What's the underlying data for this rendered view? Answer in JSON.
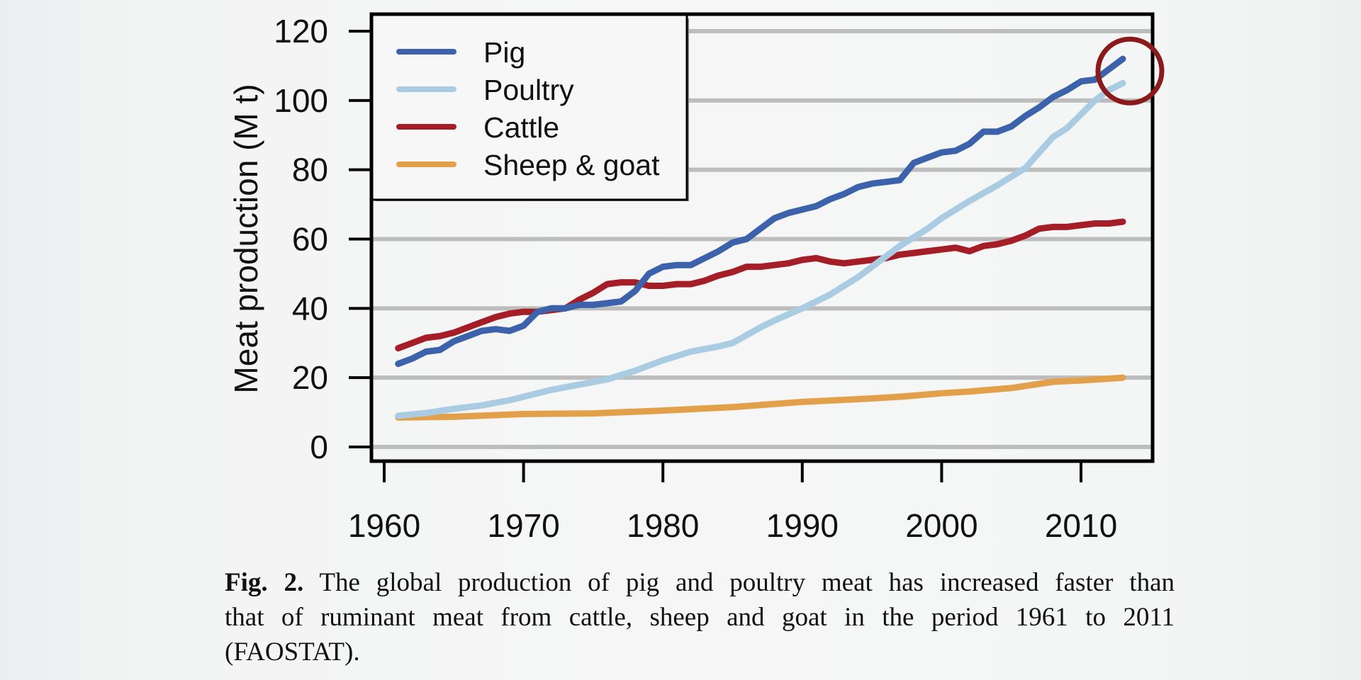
{
  "chart_data": {
    "type": "line",
    "title": "",
    "xlabel": "",
    "ylabel": "Meat production (M t)",
    "xlim": [
      1959,
      2015
    ],
    "ylim": [
      0,
      120
    ],
    "xticks": [
      1960,
      1970,
      1980,
      1990,
      2000,
      2010
    ],
    "yticks": [
      0,
      20,
      40,
      60,
      80,
      100,
      120
    ],
    "grid": "horizontal",
    "legend_position": "top-left",
    "series": [
      {
        "name": "Pig",
        "color": "#3b62aa",
        "x": [
          1961,
          1962,
          1963,
          1964,
          1965,
          1966,
          1967,
          1968,
          1969,
          1970,
          1971,
          1972,
          1973,
          1974,
          1975,
          1976,
          1977,
          1978,
          1979,
          1980,
          1981,
          1982,
          1983,
          1984,
          1985,
          1986,
          1987,
          1988,
          1989,
          1990,
          1991,
          1992,
          1993,
          1994,
          1995,
          1996,
          1997,
          1998,
          1999,
          2000,
          2001,
          2002,
          2003,
          2004,
          2005,
          2006,
          2007,
          2008,
          2009,
          2010,
          2011,
          2012,
          2013
        ],
        "values": [
          24,
          25.5,
          27.5,
          28,
          30.5,
          32,
          33.5,
          34,
          33.5,
          35,
          39,
          40,
          40,
          41,
          41,
          41.5,
          42,
          45,
          50,
          52,
          52.5,
          52.5,
          54.5,
          56.5,
          59,
          60,
          63,
          66,
          67.5,
          68.5,
          69.5,
          71.5,
          73,
          75,
          76,
          76.5,
          77,
          82,
          83.5,
          85,
          85.5,
          87.5,
          91,
          91,
          92.5,
          95.5,
          98,
          101,
          103,
          105.5,
          106,
          109,
          112
        ]
      },
      {
        "name": "Poultry",
        "color": "#a9cce3",
        "x": [
          1961,
          1963,
          1965,
          1967,
          1969,
          1970,
          1972,
          1974,
          1976,
          1978,
          1980,
          1982,
          1984,
          1985,
          1987,
          1988,
          1990,
          1992,
          1994,
          1995,
          1997,
          1999,
          2000,
          2002,
          2004,
          2005,
          2006,
          2007,
          2008,
          2009,
          2010,
          2011,
          2012,
          2013
        ],
        "values": [
          9,
          9.8,
          11,
          12,
          13.5,
          14.5,
          16.5,
          18,
          19.5,
          22,
          25,
          27.5,
          29,
          30,
          34.5,
          36.5,
          40,
          44,
          49,
          52,
          58,
          63,
          66,
          71,
          75.5,
          78,
          80.5,
          85,
          89.5,
          92,
          96,
          100,
          103,
          105
        ]
      },
      {
        "name": "Cattle",
        "color": "#a51e27",
        "x": [
          1961,
          1962,
          1963,
          1964,
          1965,
          1966,
          1967,
          1968,
          1969,
          1970,
          1971,
          1972,
          1973,
          1974,
          1975,
          1976,
          1977,
          1978,
          1979,
          1980,
          1981,
          1982,
          1983,
          1984,
          1985,
          1986,
          1987,
          1988,
          1989,
          1990,
          1991,
          1992,
          1993,
          1994,
          1995,
          1996,
          1997,
          1998,
          1999,
          2000,
          2001,
          2002,
          2003,
          2004,
          2005,
          2006,
          2007,
          2008,
          2009,
          2010,
          2011,
          2012,
          2013
        ],
        "values": [
          28.5,
          30,
          31.5,
          32,
          33,
          34.5,
          36,
          37.5,
          38.5,
          39,
          39,
          39.5,
          40,
          42.5,
          44.5,
          47,
          47.5,
          47.5,
          46.5,
          46.5,
          47,
          47,
          48,
          49.5,
          50.5,
          52,
          52,
          52.5,
          53,
          54,
          54.5,
          53.5,
          53,
          53.5,
          54,
          54.5,
          55.5,
          56,
          56.5,
          57,
          57.5,
          56.5,
          58,
          58.5,
          59.5,
          61,
          63,
          63.5,
          63.5,
          64,
          64.5,
          64.5,
          65
        ]
      },
      {
        "name": "Sheep & goat",
        "color": "#e3a04a",
        "x": [
          1961,
          1965,
          1970,
          1975,
          1980,
          1985,
          1990,
          1995,
          1997,
          2000,
          2002,
          2005,
          2008,
          2010,
          2013
        ],
        "values": [
          8.5,
          8.7,
          9.5,
          9.7,
          10.5,
          11.5,
          13,
          14,
          14.5,
          15.5,
          16,
          17,
          18.8,
          19.2,
          20
        ]
      }
    ],
    "annotation": {
      "type": "circle",
      "target": "Pig and Poultry endpoints at 2013",
      "color": "#8b1a1a"
    }
  },
  "caption": {
    "label": "Fig. 2.",
    "line1": "The global production of pig and poultry meat has increased faster than",
    "line2": "that of ruminant meat from cattle, sheep and goat in the period 1961 to 2011",
    "line3": "(FAOSTAT)."
  }
}
